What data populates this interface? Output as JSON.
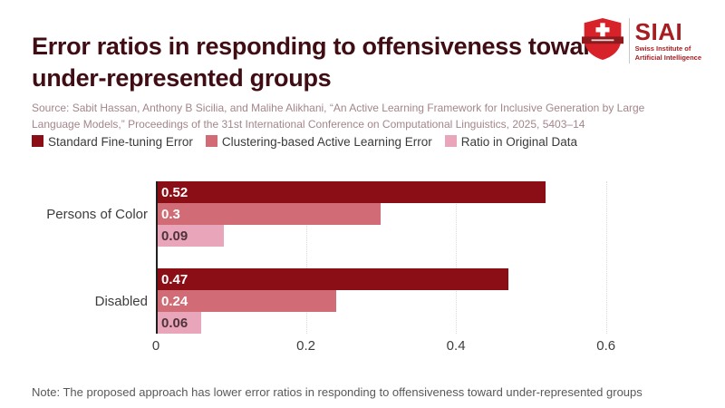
{
  "page": {
    "title": "Error ratios in responding to offensiveness toward under-represented groups",
    "source": "Source: Sabit Hassan, Anthony B Sicilia, and Malihe Alikhani, “An Active Learning Framework for Inclusive Generation by Large Language Models,” Proceedings of the 31st International Conference on Computational Linguistics, 2025, 5403–14",
    "note": "Note: The proposed approach has lower error ratios in responding to offensiveness toward under-represented groups"
  },
  "logo": {
    "name": "SIAI",
    "subtitle_line1": "Swiss Institute of",
    "subtitle_line2": "Artificial Intelligence",
    "shield_icon": "swiss-shield-icon",
    "shield_red": "#d7222a",
    "banner_dark_red": "#8f1a1e",
    "brand_dark_red": "#a41e22"
  },
  "colors": {
    "title_text": "#3f0d13",
    "source_text": "#a3868a",
    "legend_text": "#3a3a3a",
    "note_text": "#585858",
    "axis_text": "#3d3d3d",
    "gridline": "#d9d9d9",
    "axis_line": "#1f1f1f"
  },
  "chart_data": {
    "type": "bar",
    "orientation": "horizontal",
    "title": "Error ratios in responding to offensiveness toward under-represented groups",
    "categories": [
      "Persons of Color",
      "Disabled"
    ],
    "series": [
      {
        "name": "Standard Fine-tuning Error",
        "color": "#8b0e17",
        "label_color": "#ffffff",
        "values": [
          0.52,
          0.47
        ],
        "labels": [
          "0.52",
          "0.47"
        ]
      },
      {
        "name": "Clustering-based Active Learning Error",
        "color": "#d16b75",
        "label_color": "#ffffff",
        "values": [
          0.3,
          0.24
        ],
        "labels": [
          "0.3",
          "0.24"
        ]
      },
      {
        "name": "Ratio in Original Data",
        "color": "#e9a6ba",
        "label_color": "#50333a",
        "values": [
          0.09,
          0.06
        ],
        "labels": [
          "0.09",
          "0.06"
        ]
      }
    ],
    "xlim": [
      0,
      0.72
    ],
    "xticks": [
      0,
      0.2,
      0.4,
      0.6
    ],
    "xtick_labels": [
      "0",
      "0.2",
      "0.4",
      "0.6"
    ],
    "grid": "vertical-dotted",
    "legend_position": "top-left",
    "value_labels": "inside-start"
  }
}
